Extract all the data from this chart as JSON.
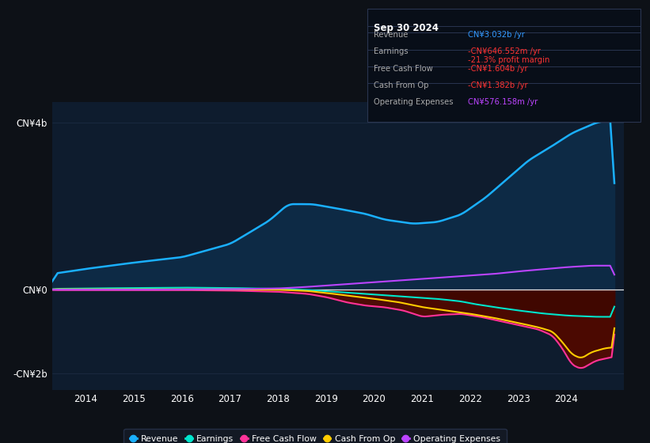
{
  "bg_color": "#0d1117",
  "chart_bg": "#0e1c2e",
  "title": "Sep 30 2024",
  "ylim": [
    -2400000000.0,
    4500000000.0
  ],
  "ytick_positions": [
    -2000000000.0,
    0,
    4000000000.0
  ],
  "ytick_labels": [
    "-CN¥2b",
    "CN¥0",
    "CN¥4b"
  ],
  "xtick_labels": [
    "2014",
    "2015",
    "2016",
    "2017",
    "2018",
    "2019",
    "2020",
    "2021",
    "2022",
    "2023",
    "2024"
  ],
  "xtick_positions": [
    2014,
    2015,
    2016,
    2017,
    2018,
    2019,
    2020,
    2021,
    2022,
    2023,
    2024
  ],
  "xlim": [
    2013.3,
    2025.2
  ],
  "line_colors": {
    "revenue": "#1ab0ff",
    "earnings": "#00e5cc",
    "free_cash_flow": "#ff3399",
    "cash_from_op": "#ffcc00",
    "operating_expenses": "#bb44ff"
  },
  "fill_colors": {
    "revenue": "#1a3a5c",
    "negative": "#6b0000",
    "negative2": "#550000"
  },
  "info_box": {
    "title": "Sep 30 2024",
    "rows": [
      {
        "label": "Revenue",
        "value": "CN¥3.032b /yr",
        "value_color": "#3399ff",
        "sub": null,
        "sub_color": null
      },
      {
        "label": "Earnings",
        "value": "-CN¥646.552m /yr",
        "value_color": "#ff3333",
        "sub": "-21.3% profit margin",
        "sub_color": "#ff3333"
      },
      {
        "label": "Free Cash Flow",
        "value": "-CN¥1.604b /yr",
        "value_color": "#ff3333",
        "sub": null,
        "sub_color": null
      },
      {
        "label": "Cash From Op",
        "value": "-CN¥1.382b /yr",
        "value_color": "#ff3333",
        "sub": null,
        "sub_color": null
      },
      {
        "label": "Operating Expenses",
        "value": "CN¥576.158m /yr",
        "value_color": "#bb44ff",
        "sub": null,
        "sub_color": null
      }
    ]
  },
  "legend_items": [
    {
      "label": "Revenue",
      "color": "#1ab0ff"
    },
    {
      "label": "Earnings",
      "color": "#00e5cc"
    },
    {
      "label": "Free Cash Flow",
      "color": "#ff3399"
    },
    {
      "label": "Cash From Op",
      "color": "#ffcc00"
    },
    {
      "label": "Operating Expenses",
      "color": "#bb44ff"
    }
  ]
}
